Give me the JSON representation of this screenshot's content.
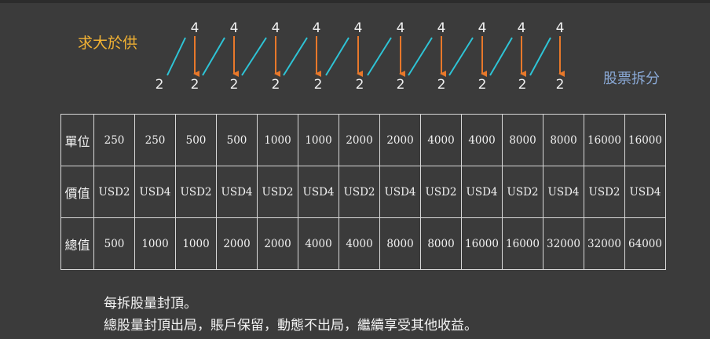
{
  "labels": {
    "left": "求大於供",
    "right": "股票拆分"
  },
  "diagram": {
    "top_numbers": [
      "4",
      "4",
      "4",
      "4",
      "4",
      "4",
      "4",
      "4",
      "4",
      "4"
    ],
    "bottom_numbers": [
      "2",
      "2",
      "2",
      "2",
      "2",
      "2",
      "2",
      "2",
      "2",
      "2",
      "2"
    ],
    "colors": {
      "diagonal": "#2ec4d6",
      "arrow": "#e8782a"
    }
  },
  "table": {
    "rows": [
      {
        "header": "單位",
        "cells": [
          "250",
          "250",
          "500",
          "500",
          "1000",
          "1000",
          "2000",
          "2000",
          "4000",
          "4000",
          "8000",
          "8000",
          "16000",
          "16000"
        ]
      },
      {
        "header": "價值",
        "cells": [
          "USD2",
          "USD4",
          "USD2",
          "USD4",
          "USD2",
          "USD4",
          "USD2",
          "USD4",
          "USD2",
          "USD4",
          "USD2",
          "USD4",
          "USD2",
          "USD4"
        ]
      },
      {
        "header": "總值",
        "cells": [
          "500",
          "1000",
          "1000",
          "2000",
          "2000",
          "4000",
          "4000",
          "8000",
          "8000",
          "16000",
          "16000",
          "32000",
          "32000",
          "64000"
        ]
      }
    ]
  },
  "notes": [
    "每拆股量封頂。",
    "總股量封頂出局，賬戶保留，動態不出局，繼續享受其他收益。"
  ]
}
